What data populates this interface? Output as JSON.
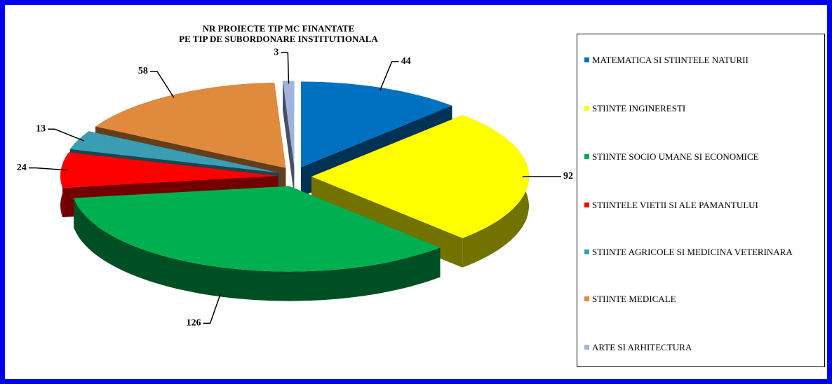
{
  "chart_data": {
    "type": "pie3d",
    "title": "NR PROIECTE TIP MC FINANTATE\nPE TIP DE SUBORDONARE INSTITUTIONALA",
    "categories": [
      "MATEMATICA SI STIINTELE NATURII",
      "STIINTE INGINERESTI",
      "STIINTE SOCIO UMANE SI ECONOMICE",
      "STIINTELE VIETII SI ALE PAMANTULUI",
      "STIINTE AGRICOLE SI MEDICINA VETERINARA",
      "STIINTE MEDICALE",
      "ARTE SI ARHITECTURA"
    ],
    "values": [
      44,
      92,
      126,
      24,
      13,
      58,
      3
    ],
    "colors": [
      "#0070c0",
      "#ffff00",
      "#00b050",
      "#ff0000",
      "#3b9db3",
      "#e08a3e",
      "#9fb3dc"
    ],
    "legend": "right"
  }
}
